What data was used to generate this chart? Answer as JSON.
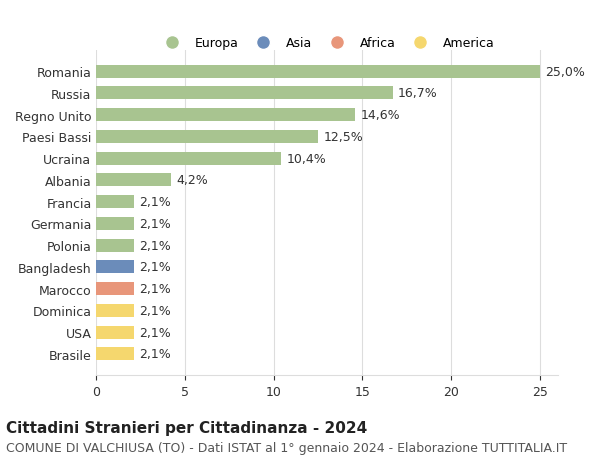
{
  "categories": [
    "Brasile",
    "USA",
    "Dominica",
    "Marocco",
    "Bangladesh",
    "Polonia",
    "Germania",
    "Francia",
    "Albania",
    "Ucraina",
    "Paesi Bassi",
    "Regno Unito",
    "Russia",
    "Romania"
  ],
  "values": [
    2.1,
    2.1,
    2.1,
    2.1,
    2.1,
    2.1,
    2.1,
    2.1,
    4.2,
    10.4,
    12.5,
    14.6,
    16.7,
    25.0
  ],
  "labels": [
    "2,1%",
    "2,1%",
    "2,1%",
    "2,1%",
    "2,1%",
    "2,1%",
    "2,1%",
    "2,1%",
    "4,2%",
    "10,4%",
    "12,5%",
    "14,6%",
    "16,7%",
    "25,0%"
  ],
  "colors": [
    "#f5d76e",
    "#f5d76e",
    "#f5d76e",
    "#e8967a",
    "#6b8cba",
    "#a8c490",
    "#a8c490",
    "#a8c490",
    "#a8c490",
    "#a8c490",
    "#a8c490",
    "#a8c490",
    "#a8c490",
    "#a8c490"
  ],
  "legend": [
    {
      "label": "Europa",
      "color": "#a8c490"
    },
    {
      "label": "Asia",
      "color": "#6b8cba"
    },
    {
      "label": "Africa",
      "color": "#e8967a"
    },
    {
      "label": "America",
      "color": "#f5d76e"
    }
  ],
  "title": "Cittadini Stranieri per Cittadinanza - 2024",
  "subtitle": "COMUNE DI VALCHIUSA (TO) - Dati ISTAT al 1° gennaio 2024 - Elaborazione TUTTITALIA.IT",
  "xlim": [
    0,
    26
  ],
  "xticks": [
    0,
    5,
    10,
    15,
    20,
    25
  ],
  "background_color": "#ffffff",
  "grid_color": "#dddddd",
  "bar_height": 0.6,
  "label_fontsize": 9,
  "title_fontsize": 11,
  "subtitle_fontsize": 9
}
